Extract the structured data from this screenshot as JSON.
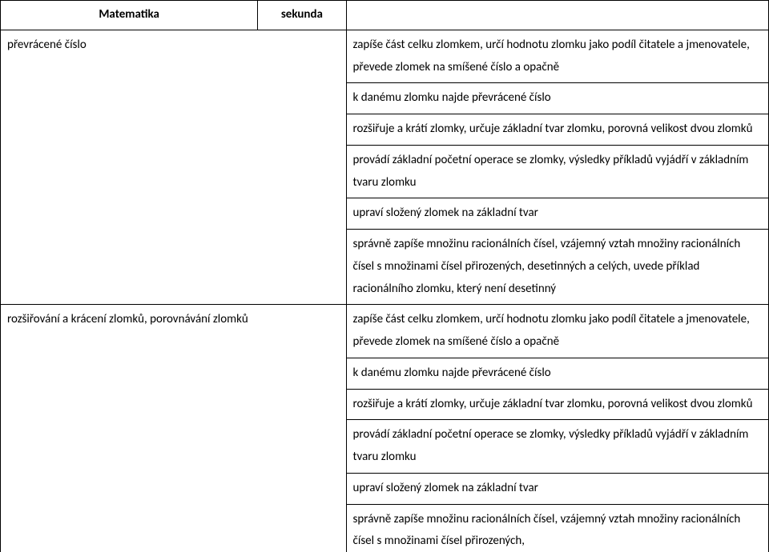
{
  "header": {
    "subject": "Matematika",
    "grade": "sekunda"
  },
  "rows": {
    "r1": {
      "left": "převrácené číslo",
      "right1": "zapíše část celku zlomkem, určí hodnotu zlomku jako podíl čitatele a jmenovatele, převede zlomek na smíšené číslo a opačně",
      "right2": "k danému zlomku najde převrácené číslo",
      "right3": "rozšiřuje a krátí zlomky, určuje základní tvar zlomku, porovná velikost dvou zlomků",
      "right4": "provádí základní početní operace se zlomky, výsledky příkladů vyjádří v základním tvaru zlomku",
      "right5": "upraví složený zlomek na základní tvar",
      "right6": "správně zapíše množinu racionálních čísel, vzájemný vztah množiny racionálních čísel s množinami čísel přirozených, desetinných a celých, uvede příklad racionálního zlomku, který není desetinný"
    },
    "r2": {
      "left": "rozšiřování a krácení zlomků, porovnávání zlomků",
      "right1": "zapíše část celku zlomkem, určí hodnotu zlomku jako podíl čitatele a jmenovatele, převede zlomek na smíšené číslo a opačně",
      "right2": "k danému zlomku najde převrácené číslo",
      "right3": "rozšiřuje a krátí zlomky, určuje základní tvar zlomku, porovná velikost dvou zlomků",
      "right4": "provádí základní početní operace se zlomky, výsledky příkladů vyjádří v základním tvaru zlomku",
      "right5": "upraví složený zlomek na základní tvar",
      "right6": "správně zapíše množinu racionálních čísel, vzájemný vztah množiny racionálních čísel s množinami čísel přirozených,"
    }
  }
}
